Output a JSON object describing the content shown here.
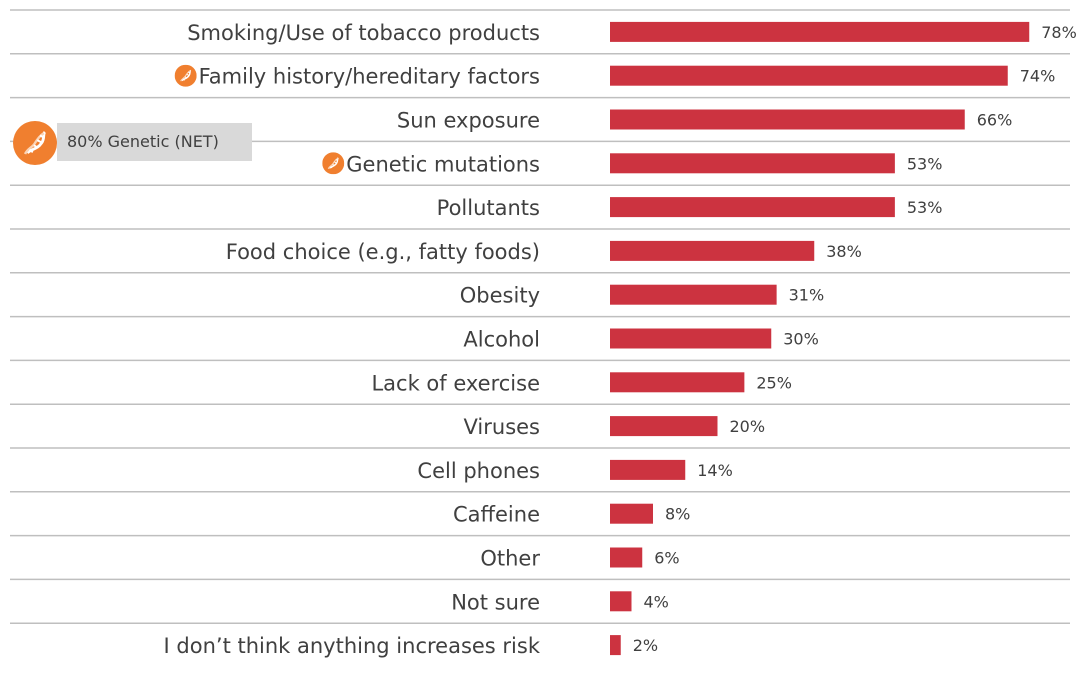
{
  "chart_data": {
    "type": "bar",
    "orientation": "horizontal",
    "categories": [
      "Smoking/Use of tobacco products",
      "Family history/hereditary factors",
      "Sun exposure",
      "Genetic mutations",
      "Pollutants",
      "Food choice (e.g., fatty foods)",
      "Obesity",
      "Alcohol",
      "Lack of exercise",
      "Viruses",
      "Cell phones",
      "Caffeine",
      "Other",
      "Not sure",
      "I don’t think anything increases risk"
    ],
    "values": [
      78,
      74,
      66,
      53,
      53,
      38,
      31,
      30,
      25,
      20,
      14,
      8,
      6,
      4,
      2
    ],
    "value_labels": [
      "78%",
      "74%",
      "66%",
      "53%",
      "53%",
      "38%",
      "31%",
      "30%",
      "25%",
      "20%",
      "14%",
      "8%",
      "6%",
      "4%",
      "2%"
    ],
    "genetic_flagged": [
      false,
      true,
      false,
      true,
      false,
      false,
      false,
      false,
      false,
      false,
      false,
      false,
      false,
      false,
      false
    ],
    "xlim": [
      0,
      80
    ],
    "bar_color": "#cc3340",
    "icon_color": "#f07f2f",
    "grid": false,
    "annotation": "80% Genetic (NET)"
  },
  "icons": {
    "dna": "dna-icon"
  }
}
